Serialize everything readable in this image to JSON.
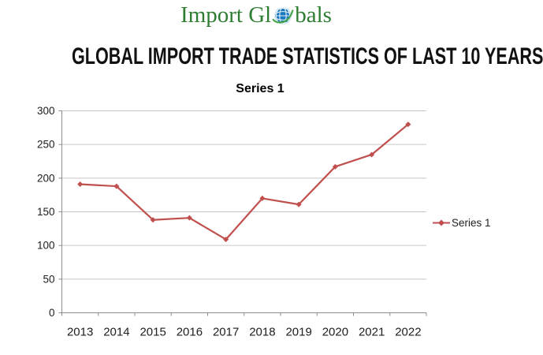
{
  "logo": {
    "text_left": "Import Gl",
    "text_right": "bals",
    "colors": {
      "text": "#2E7D32",
      "globe": "#1B79C0",
      "globe_grid": "#EAF4FB",
      "orbit": "#46A546"
    }
  },
  "title": "GLOBAL IMPORT TRADE STATISTICS OF LAST 10 YEARS",
  "chart_data": {
    "type": "line",
    "title": "Series 1",
    "categories": [
      "2013",
      "2014",
      "2015",
      "2016",
      "2017",
      "2018",
      "2019",
      "2020",
      "2021",
      "2022"
    ],
    "series": [
      {
        "name": "Series 1",
        "values": [
          191,
          188,
          138,
          141,
          109,
          170,
          161,
          217,
          235,
          280
        ]
      }
    ],
    "xlabel": "",
    "ylabel": "",
    "ylim": [
      0,
      300
    ],
    "yticks": [
      0,
      50,
      100,
      150,
      200,
      250,
      300
    ],
    "grid": true,
    "marker": "diamond",
    "legend": {
      "position": "right",
      "entries": [
        "Series 1"
      ]
    },
    "colors": {
      "line": "#C0504D",
      "gridline": "#C8C8C8",
      "axis": "#8C8C8C",
      "tick_text": "#202020"
    }
  }
}
